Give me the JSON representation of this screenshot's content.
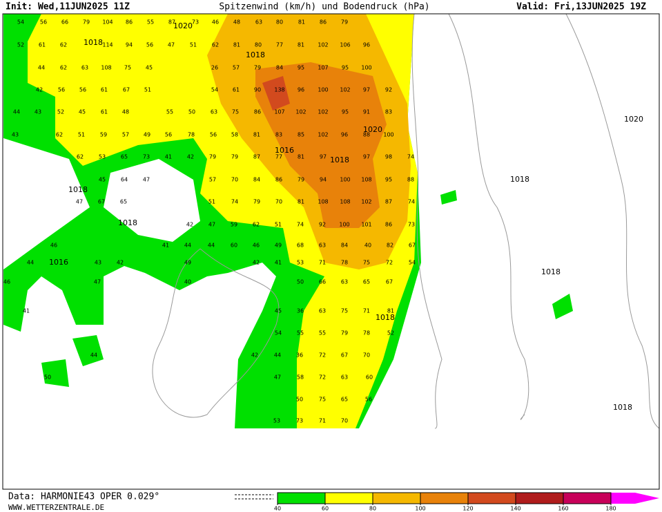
{
  "header": {
    "init": "Init: Wed,11JUN2025 11Z",
    "title": "Spitzenwind (km/h) und Bodendruck (hPa)",
    "valid": "Valid: Fri,13JUN2025 19Z"
  },
  "map": {
    "wind_labels": [
      54,
      56,
      66,
      79,
      104,
      86,
      55,
      87,
      73,
      46,
      48,
      63,
      80,
      81,
      86,
      79,
      52,
      61,
      62,
      114,
      94,
      56,
      47,
      51,
      62,
      81,
      80,
      77,
      81,
      102,
      106,
      96,
      44,
      62,
      63,
      108,
      75,
      45,
      26,
      57,
      79,
      84,
      95,
      107,
      95,
      100,
      42,
      56,
      56,
      61,
      67,
      51,
      54,
      61,
      90,
      138,
      96,
      100,
      102,
      97,
      92,
      44,
      43,
      52,
      45,
      61,
      48,
      55,
      50,
      63,
      75,
      86,
      107,
      102,
      102,
      95,
      91,
      83,
      43,
      62,
      51,
      59,
      57,
      49,
      56,
      78,
      56,
      58,
      81,
      83,
      85,
      102,
      96,
      88,
      100,
      62,
      53,
      65,
      73,
      41,
      42,
      79,
      79,
      87,
      77,
      81,
      97,
      97,
      98,
      74,
      45,
      64,
      47,
      57,
      70,
      84,
      86,
      79,
      94,
      100,
      108,
      95,
      88,
      47,
      67,
      65,
      51,
      74,
      79,
      70,
      81,
      108,
      108,
      102,
      87,
      74,
      42,
      47,
      59,
      62,
      51,
      74,
      92,
      100,
      101,
      86,
      73,
      46,
      41,
      44,
      44,
      60,
      46,
      49,
      68,
      63,
      84,
      40,
      82,
      67,
      44,
      43,
      42,
      49,
      42,
      41,
      53,
      71,
      78,
      75,
      72,
      54,
      46,
      47,
      40,
      50,
      66,
      63,
      65,
      67,
      41,
      45,
      36,
      63,
      75,
      71,
      81,
      54,
      55,
      55,
      79,
      78,
      52,
      44,
      42,
      44,
      36,
      72,
      67,
      70,
      50,
      47,
      58,
      72,
      63,
      60,
      50,
      75,
      65,
      56,
      53,
      73,
      71,
      70
    ],
    "pressure_labels": [
      1020,
      1018,
      1018,
      1020,
      1016,
      1018,
      1018,
      1018,
      1016,
      1018,
      1020,
      1018,
      1018,
      1018
    ]
  },
  "legend": {
    "ticks": [
      40,
      60,
      80,
      100,
      120,
      140,
      160,
      180
    ]
  },
  "footer": {
    "data": "Data: HARMONIE43 OPER 0.029°",
    "site": "WWW.WETTERZENTRALE.DE"
  }
}
